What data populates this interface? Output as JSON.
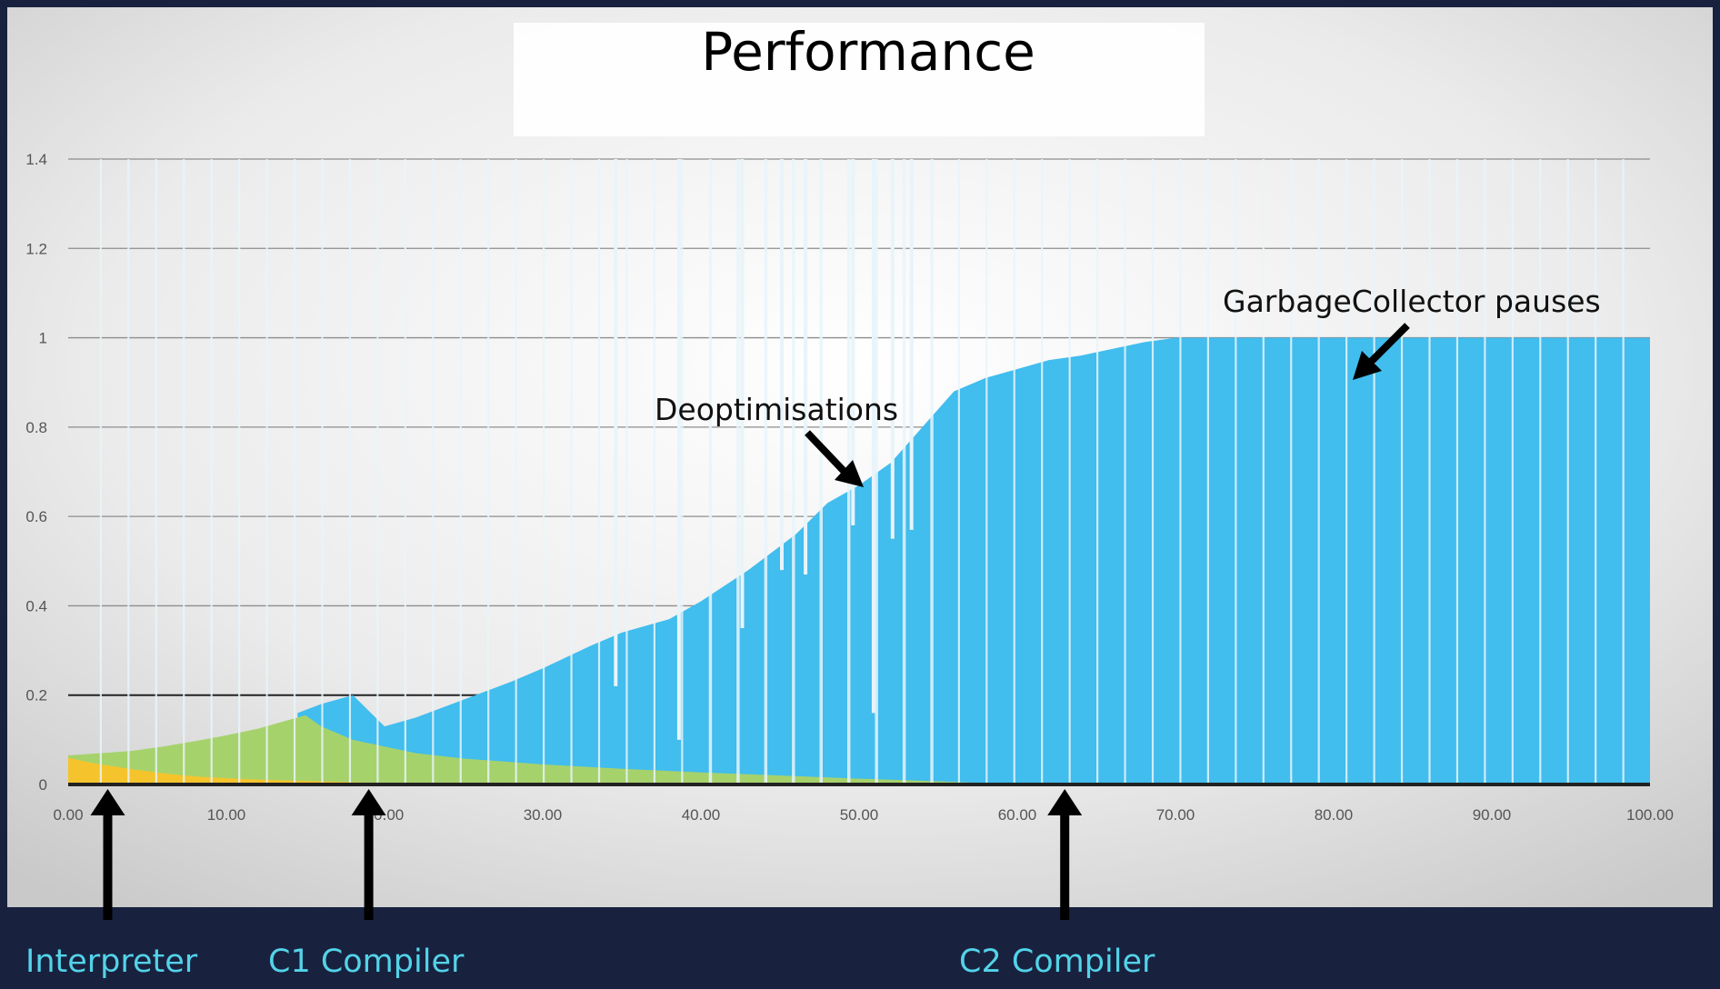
{
  "colors": {
    "background": "#18223f",
    "interpreter": "#f5c42c",
    "c1": "#a6d26c",
    "c2": "#41bdee",
    "bottom_label": "#53d3e8"
  },
  "chart_data": {
    "type": "area",
    "title": "Performance",
    "xlabel": "",
    "ylabel": "",
    "xlim": [
      0,
      100
    ],
    "ylim": [
      0,
      1.5
    ],
    "x_ticks": [
      "0.00",
      "10.00",
      "20.00",
      "30.00",
      "40.00",
      "50.00",
      "60.00",
      "70.00",
      "80.00",
      "90.00",
      "100.00"
    ],
    "y_ticks": [
      "0",
      "0.2",
      "0.4",
      "0.6",
      "0.8",
      "1",
      "1.2",
      "1.4"
    ],
    "grid": true,
    "series": [
      {
        "name": "Interpreter",
        "color": "#f5c42c",
        "x": [
          0,
          1,
          2,
          3,
          4,
          5,
          6,
          8,
          10,
          12,
          14,
          16,
          18,
          20,
          21
        ],
        "y": [
          0.06,
          0.052,
          0.045,
          0.04,
          0.034,
          0.03,
          0.025,
          0.018,
          0.014,
          0.011,
          0.009,
          0.007,
          0.005,
          0.003,
          0.0
        ]
      },
      {
        "name": "C1 Compiler",
        "color": "#a6d26c",
        "x": [
          0,
          2,
          4,
          6,
          8,
          10,
          12,
          14,
          15,
          16,
          18,
          20,
          22,
          25,
          30,
          35,
          40,
          45,
          50,
          55,
          58,
          60
        ],
        "y": [
          0.065,
          0.07,
          0.075,
          0.085,
          0.097,
          0.11,
          0.125,
          0.145,
          0.155,
          0.13,
          0.1,
          0.085,
          0.07,
          0.058,
          0.045,
          0.035,
          0.027,
          0.02,
          0.013,
          0.007,
          0.003,
          0.0
        ]
      },
      {
        "name": "C2 Compiler",
        "color": "#41bdee",
        "x": [
          14.5,
          16,
          18,
          20,
          22,
          25,
          28,
          30,
          33,
          35,
          38,
          40,
          43,
          46,
          48,
          50,
          52,
          54,
          56,
          58,
          60,
          62,
          64,
          66,
          68,
          70,
          75,
          80,
          85,
          90,
          95,
          100
        ],
        "y": [
          0.16,
          0.18,
          0.2,
          0.13,
          0.15,
          0.19,
          0.23,
          0.26,
          0.31,
          0.34,
          0.37,
          0.41,
          0.48,
          0.56,
          0.63,
          0.67,
          0.72,
          0.8,
          0.88,
          0.91,
          0.93,
          0.95,
          0.96,
          0.975,
          0.99,
          1.0,
          1.0,
          1.0,
          1.0,
          1.0,
          1.0,
          1.0
        ]
      }
    ],
    "annotations": [
      {
        "text": "Deoptimisations",
        "x": 50,
        "y": 0.7
      },
      {
        "text": "GarbageCollector pauses",
        "x": 82,
        "y": 0.92
      }
    ],
    "markers": [
      {
        "label": "Interpreter",
        "x": 2.5
      },
      {
        "label": "C1 Compiler",
        "x": 19
      },
      {
        "label": "C2 Compiler",
        "x": 63
      }
    ]
  }
}
